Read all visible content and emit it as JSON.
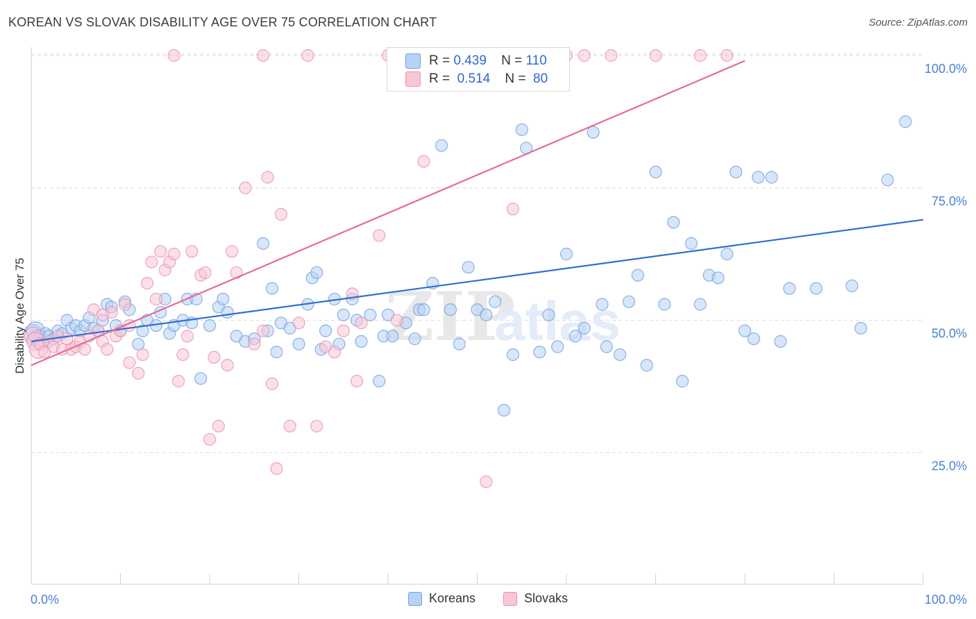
{
  "title": "KOREAN VS SLOVAK DISABILITY AGE OVER 75 CORRELATION CHART",
  "source": "Source: ZipAtlas.com",
  "watermark": {
    "zip": "ZIP",
    "atlas": "atlas"
  },
  "legend_box": {
    "rows": [
      {
        "r_label": "R =",
        "r_value": "0.439",
        "n_label": "N =",
        "n_value": "110"
      },
      {
        "r_label": "R =",
        "r_value": "0.514",
        "n_label": "N =",
        "n_value": "80"
      }
    ]
  },
  "bottom_legend": {
    "koreans": "Koreans",
    "slovaks": "Slovaks"
  },
  "colors": {
    "korean_fill": "#b7d2f4",
    "korean_stroke": "#6fa0e0",
    "korean_line": "#2f6fd0",
    "slovak_fill": "#f8c6d6",
    "slovak_stroke": "#eb8fb0",
    "slovak_line": "#e56a98",
    "grid": "#dcdcdc",
    "tick_label": "#4a7fd6"
  },
  "chart_data": {
    "type": "scatter",
    "xlabel": "",
    "ylabel": "Disability Age Over 75",
    "xlim": [
      0,
      100
    ],
    "ylim": [
      0,
      103
    ],
    "x_tick_labels": [
      {
        "value": 0,
        "label": "0.0%"
      },
      {
        "value": 100,
        "label": "100.0%"
      }
    ],
    "y_tick_labels": [
      {
        "value": 25,
        "label": "25.0%"
      },
      {
        "value": 50,
        "label": "50.0%"
      },
      {
        "value": 75,
        "label": "75.0%"
      },
      {
        "value": 100,
        "label": "100.0%"
      }
    ],
    "series": [
      {
        "name": "Koreans",
        "R": 0.439,
        "N": 110,
        "trend": {
          "x": [
            0,
            100
          ],
          "y": [
            46.0,
            69.0
          ]
        },
        "points": [
          [
            0.2,
            47.5
          ],
          [
            0.5,
            48
          ],
          [
            0.8,
            46.5
          ],
          [
            1,
            47
          ],
          [
            1.3,
            46
          ],
          [
            1.6,
            47.5
          ],
          [
            2,
            47
          ],
          [
            2.5,
            46.5
          ],
          [
            3,
            48
          ],
          [
            3.5,
            47.5
          ],
          [
            4,
            50
          ],
          [
            4.5,
            48.5
          ],
          [
            5,
            49
          ],
          [
            5.5,
            48
          ],
          [
            6,
            49
          ],
          [
            6.5,
            50.5
          ],
          [
            7,
            48.5
          ],
          [
            7.5,
            48
          ],
          [
            8,
            50
          ],
          [
            8.5,
            53
          ],
          [
            9,
            52.5
          ],
          [
            9.5,
            49
          ],
          [
            10,
            48
          ],
          [
            10.5,
            53.5
          ],
          [
            11,
            52
          ],
          [
            12,
            45.5
          ],
          [
            12.5,
            48
          ],
          [
            13,
            50
          ],
          [
            14,
            49
          ],
          [
            14.5,
            51.5
          ],
          [
            15,
            54
          ],
          [
            15.5,
            47.5
          ],
          [
            16,
            49
          ],
          [
            17,
            50
          ],
          [
            17.5,
            54
          ],
          [
            18,
            49.5
          ],
          [
            18.5,
            54
          ],
          [
            19,
            39
          ],
          [
            20,
            49
          ],
          [
            21,
            52.5
          ],
          [
            21.5,
            54
          ],
          [
            22,
            51.5
          ],
          [
            23,
            47
          ],
          [
            24,
            46
          ],
          [
            25,
            46.5
          ],
          [
            26,
            64.5
          ],
          [
            26.5,
            48
          ],
          [
            27,
            56
          ],
          [
            27.5,
            44
          ],
          [
            28,
            49.5
          ],
          [
            29,
            48.5
          ],
          [
            30,
            45.5
          ],
          [
            31,
            53
          ],
          [
            31.5,
            58
          ],
          [
            32,
            59
          ],
          [
            32.5,
            44.5
          ],
          [
            33,
            48
          ],
          [
            34,
            54
          ],
          [
            34.5,
            45.5
          ],
          [
            35,
            51
          ],
          [
            36,
            54
          ],
          [
            36.5,
            50
          ],
          [
            37,
            46
          ],
          [
            38,
            51
          ],
          [
            39,
            38.5
          ],
          [
            39.5,
            47
          ],
          [
            40,
            51
          ],
          [
            40.5,
            47
          ],
          [
            42,
            49.5
          ],
          [
            43,
            46.5
          ],
          [
            43.5,
            52
          ],
          [
            44,
            52
          ],
          [
            45,
            57
          ],
          [
            46,
            83
          ],
          [
            47,
            52
          ],
          [
            48,
            45.5
          ],
          [
            49,
            60
          ],
          [
            50,
            52
          ],
          [
            51,
            51
          ],
          [
            52,
            53.5
          ],
          [
            53,
            33
          ],
          [
            54,
            43.5
          ],
          [
            55,
            86
          ],
          [
            55.5,
            82.5
          ],
          [
            57,
            44
          ],
          [
            58,
            51
          ],
          [
            59,
            45
          ],
          [
            60,
            62.5
          ],
          [
            61,
            47
          ],
          [
            62,
            48.5
          ],
          [
            63,
            85.5
          ],
          [
            64,
            53
          ],
          [
            64.5,
            45
          ],
          [
            66,
            43.5
          ],
          [
            67,
            53.5
          ],
          [
            68,
            58.5
          ],
          [
            69,
            41.5
          ],
          [
            70,
            78
          ],
          [
            71,
            53
          ],
          [
            72,
            68.5
          ],
          [
            73,
            38.5
          ],
          [
            74,
            64.5
          ],
          [
            75,
            53
          ],
          [
            76,
            58.5
          ],
          [
            77,
            58
          ],
          [
            78,
            62.5
          ],
          [
            79,
            78
          ],
          [
            80,
            48
          ],
          [
            81,
            46.5
          ],
          [
            81.5,
            77
          ],
          [
            83,
            77
          ],
          [
            84,
            46
          ],
          [
            85,
            56
          ],
          [
            88,
            56
          ],
          [
            92,
            56.5
          ],
          [
            93,
            48.5
          ],
          [
            96,
            76.5
          ],
          [
            98,
            87.5
          ]
        ]
      },
      {
        "name": "Slovaks",
        "R": 0.514,
        "N": 80,
        "trend": {
          "x": [
            0,
            80
          ],
          "y": [
            41.5,
            99.0
          ]
        },
        "points": [
          [
            0.2,
            47
          ],
          [
            0.5,
            46
          ],
          [
            0.8,
            44.5
          ],
          [
            1,
            45.5
          ],
          [
            1.5,
            44
          ],
          [
            2,
            46
          ],
          [
            2.5,
            45
          ],
          [
            3,
            47
          ],
          [
            3.5,
            44.5
          ],
          [
            4,
            46.5
          ],
          [
            4.5,
            44.5
          ],
          [
            5,
            45
          ],
          [
            5.5,
            46
          ],
          [
            6,
            44.5
          ],
          [
            6.5,
            47
          ],
          [
            7,
            52
          ],
          [
            7.5,
            48
          ],
          [
            8,
            46
          ],
          [
            8.5,
            44.5
          ],
          [
            9,
            51.5
          ],
          [
            9.5,
            47
          ],
          [
            10,
            48
          ],
          [
            10.5,
            53
          ],
          [
            11,
            42
          ],
          [
            12,
            40
          ],
          [
            12.5,
            43.5
          ],
          [
            13,
            57
          ],
          [
            13.5,
            61
          ],
          [
            14,
            54
          ],
          [
            14.5,
            63
          ],
          [
            15,
            59.5
          ],
          [
            15.5,
            61
          ],
          [
            16,
            62.5
          ],
          [
            16.5,
            38.5
          ],
          [
            17,
            43.5
          ],
          [
            17.5,
            47
          ],
          [
            18,
            63
          ],
          [
            19,
            58.5
          ],
          [
            19.5,
            59
          ],
          [
            20,
            27.5
          ],
          [
            20.5,
            43
          ],
          [
            21,
            30
          ],
          [
            22,
            41.5
          ],
          [
            22.5,
            63
          ],
          [
            23,
            59
          ],
          [
            24,
            75
          ],
          [
            25,
            45.5
          ],
          [
            26,
            48
          ],
          [
            26.5,
            77
          ],
          [
            27,
            38
          ],
          [
            27.5,
            22
          ],
          [
            28,
            70
          ],
          [
            29,
            30
          ],
          [
            30,
            49.5
          ],
          [
            31,
            100
          ],
          [
            32,
            30
          ],
          [
            33,
            45
          ],
          [
            34,
            44
          ],
          [
            35,
            48
          ],
          [
            36,
            55
          ],
          [
            36.5,
            38.5
          ],
          [
            37,
            49.5
          ],
          [
            39,
            66
          ],
          [
            40,
            100
          ],
          [
            41,
            50
          ],
          [
            44,
            80
          ],
          [
            48,
            100
          ],
          [
            51,
            19.5
          ],
          [
            54,
            71
          ],
          [
            58,
            100
          ],
          [
            60,
            100
          ],
          [
            62,
            100
          ],
          [
            65,
            100
          ],
          [
            70,
            100
          ],
          [
            75,
            100
          ],
          [
            78,
            100
          ],
          [
            16,
            100
          ],
          [
            26,
            100
          ],
          [
            11,
            49
          ],
          [
            8,
            51
          ]
        ]
      }
    ]
  }
}
